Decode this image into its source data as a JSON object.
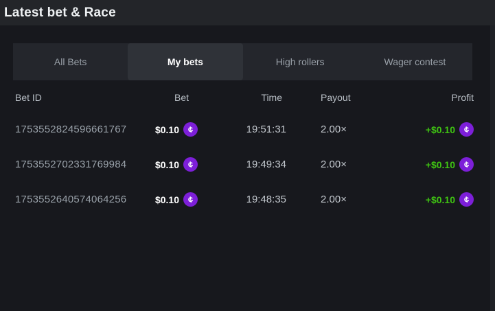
{
  "panel": {
    "title": "Latest bet & Race"
  },
  "tabs": [
    {
      "label": "All Bets",
      "active": false
    },
    {
      "label": "My bets",
      "active": true
    },
    {
      "label": "High rollers",
      "active": false
    },
    {
      "label": "Wager contest",
      "active": false
    }
  ],
  "table": {
    "columns": [
      "Bet ID",
      "Bet",
      "Time",
      "Payout",
      "Profit"
    ],
    "rows": [
      {
        "bet_id": "1753552824596661767",
        "bet": "$0.10",
        "time": "19:51:31",
        "payout": "2.00×",
        "profit": "+$0.10"
      },
      {
        "bet_id": "1753552702331769984",
        "bet": "$0.10",
        "time": "19:49:34",
        "payout": "2.00×",
        "profit": "+$0.10"
      },
      {
        "bet_id": "1753552640574064256",
        "bet": "$0.10",
        "time": "19:48:35",
        "payout": "2.00×",
        "profit": "+$0.10"
      }
    ]
  },
  "icons": {
    "coin_glyph": "¢",
    "coin_name": "coin-icon"
  },
  "colors": {
    "accent_purple": "#7d1fd9",
    "profit_green": "#3fc412",
    "panel_bg": "#17181d",
    "band_bg": "#232529",
    "tabbar_bg": "#24262c",
    "active_tab_bg": "#2f3238"
  }
}
